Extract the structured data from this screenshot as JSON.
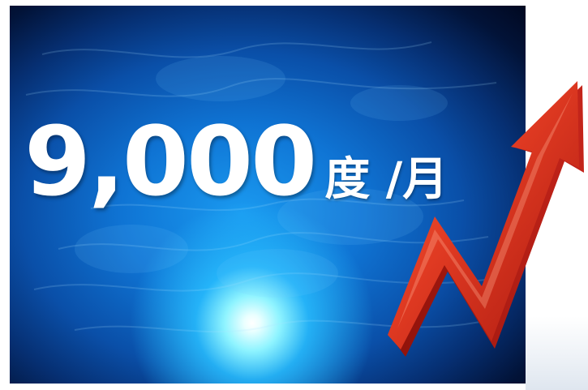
{
  "headline": {
    "value": "9,000",
    "unit": "度 /月"
  },
  "images": {
    "background": "underwater-ocean-sunlight",
    "arrow": "red-upward-trend-arrow-icon"
  },
  "colors": {
    "ocean_deep": "#021338",
    "ocean_mid": "#0f74d4",
    "sun_glow": "#8ff4ff",
    "arrow_red": "#d42a1c",
    "arrow_highlight": "#f26a45",
    "text": "#ffffff"
  }
}
